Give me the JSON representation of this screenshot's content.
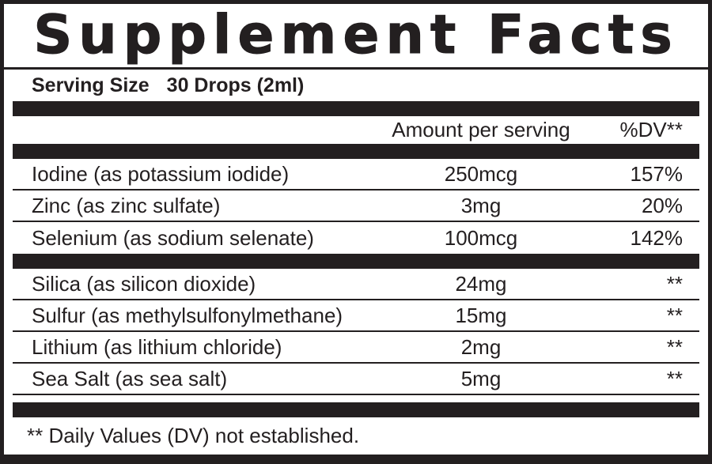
{
  "label": {
    "title": "Supplement Facts",
    "serving": {
      "label": "Serving Size",
      "value": "30 Drops (2ml)"
    },
    "columns": {
      "amount": "Amount per serving",
      "dv": "%DV**"
    },
    "rows": [
      {
        "name": "Iodine (as potassium iodide)",
        "amount": "250mcg",
        "dv": "157%"
      },
      {
        "name": "Zinc (as zinc sulfate)",
        "amount": "3mg",
        "dv": "20%"
      },
      {
        "name": "Selenium (as sodium selenate)",
        "amount": "100mcg",
        "dv": "142%"
      },
      {
        "name": "Silica (as silicon dioxide)",
        "amount": "24mg",
        "dv": "**"
      },
      {
        "name": "Sulfur (as methylsulfonylmethane)",
        "amount": "15mg",
        "dv": "**"
      },
      {
        "name": "Lithium (as lithium chloride)",
        "amount": "2mg",
        "dv": "**"
      },
      {
        "name": "Sea Salt (as sea salt)",
        "amount": "5mg",
        "dv": "**"
      }
    ],
    "footnote": "** Daily Values (DV) not established.",
    "colors": {
      "ink": "#231f20",
      "background": "#ffffff"
    }
  }
}
